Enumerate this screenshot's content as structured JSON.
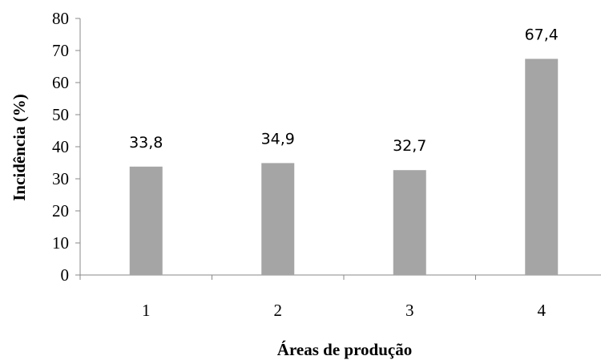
{
  "chart_data": {
    "type": "bar",
    "categories": [
      "1",
      "2",
      "3",
      "4"
    ],
    "values": [
      33.8,
      34.9,
      32.7,
      67.4
    ],
    "data_labels": [
      "33,8",
      "34,9",
      "32,7",
      "67,4"
    ],
    "xlabel": "Áreas de produção",
    "ylabel": "Incidência (%)",
    "ylim": [
      0,
      80
    ],
    "yticks": [
      "0",
      "10",
      "20",
      "30",
      "40",
      "50",
      "60",
      "70",
      "80"
    ],
    "grid": false,
    "legend": "none",
    "bar_color": "#a5a5a5"
  }
}
